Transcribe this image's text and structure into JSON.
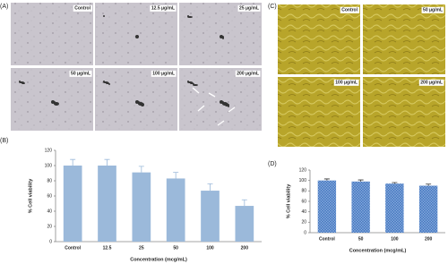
{
  "panel_a": {
    "label": "(A)",
    "images": [
      "Control",
      "12.5 μg/mL",
      "25 μg/mL",
      "50 μg/mL",
      "100 μg/mL",
      "200 μg/mL"
    ]
  },
  "panel_c": {
    "label": "(C)",
    "images": [
      "Control",
      "50 μg/mL",
      "100 μg/mL",
      "200 μg/mL"
    ]
  },
  "chart_data": [
    {
      "type": "bar",
      "panel_label": "(B)",
      "x_label": "Concentration (mcg/mL)",
      "y_label": "% Cell viability",
      "categories": [
        "Control",
        "12.5",
        "25",
        "50",
        "100",
        "200"
      ],
      "values": [
        100,
        100,
        91,
        83,
        67,
        47
      ],
      "errors": [
        8,
        8,
        8,
        8,
        9,
        8
      ],
      "color": "#9bb9da",
      "ylim": [
        0,
        120
      ],
      "yticks": [
        0,
        20,
        40,
        60,
        80,
        100,
        120
      ]
    },
    {
      "type": "bar",
      "panel_label": "(D)",
      "x_label": "Concentration (mcg/mL)",
      "y_label": "% Cell viability",
      "categories": [
        "Control",
        "50",
        "100",
        "200"
      ],
      "values": [
        100,
        98,
        94,
        90
      ],
      "errors": [
        3,
        3,
        2,
        3
      ],
      "color": "#4f7fc4",
      "ylim": [
        0,
        120
      ],
      "yticks": [
        0,
        20,
        40,
        60,
        80,
        100,
        120
      ]
    }
  ]
}
